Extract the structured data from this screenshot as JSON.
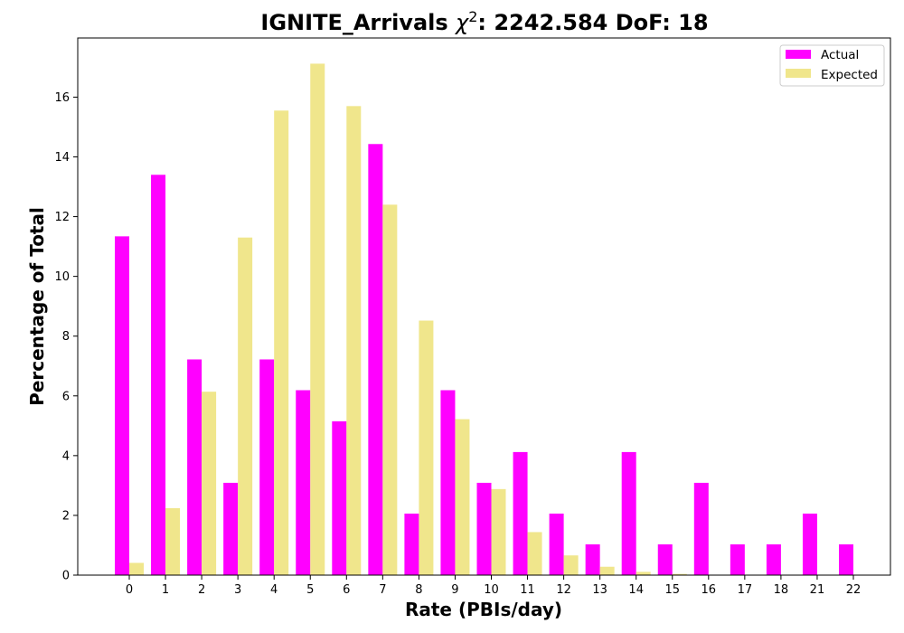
{
  "chart_data": {
    "type": "bar",
    "title": "IGNITE_Arrivals χ²: 2242.584 DoF: 18",
    "title_parts": {
      "prefix": "IGNITE_Arrivals ",
      "chi": "χ",
      "exponent": "2",
      "suffix": ": 2242.584 DoF: 18"
    },
    "xlabel": "Rate (PBIs/day)",
    "ylabel": "Percentage of Total",
    "categories": [
      "0",
      "1",
      "2",
      "3",
      "4",
      "5",
      "6",
      "7",
      "8",
      "9",
      "10",
      "11",
      "12",
      "13",
      "14",
      "15",
      "16",
      "17",
      "18",
      "21",
      "22"
    ],
    "series": [
      {
        "name": "Actual",
        "color": "#ff00ff",
        "values": [
          11.34,
          13.4,
          7.22,
          3.09,
          7.22,
          6.19,
          5.15,
          14.43,
          2.06,
          6.19,
          3.09,
          4.12,
          2.06,
          1.03,
          4.12,
          1.03,
          3.09,
          1.03,
          1.03,
          2.06,
          1.03
        ]
      },
      {
        "name": "Expected",
        "color": "#f0e68c",
        "values": [
          0.41,
          2.24,
          6.14,
          11.3,
          15.55,
          17.12,
          15.7,
          12.4,
          8.52,
          5.22,
          2.88,
          1.44,
          0.66,
          0.28,
          0.11,
          0.04,
          0.01,
          0.0,
          0.0,
          0.0,
          0.0
        ]
      }
    ],
    "yticks": [
      0,
      2,
      4,
      6,
      8,
      10,
      12,
      14,
      16
    ],
    "ylim": [
      0,
      17.98
    ],
    "grid": false,
    "legend_position": "upper-right"
  }
}
